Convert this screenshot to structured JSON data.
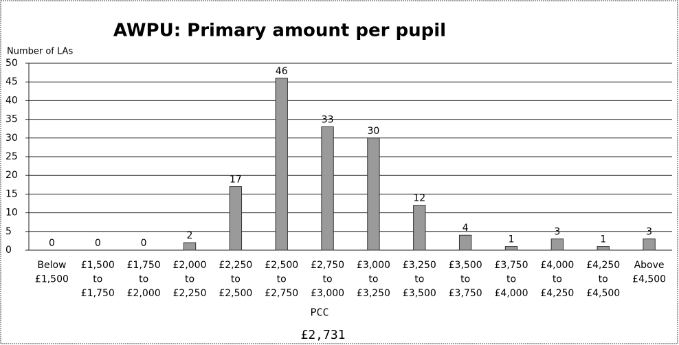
{
  "chart_data": {
    "type": "bar",
    "title": "AWPU: Primary amount per pupil",
    "y_label": "Number of LAs",
    "categories": [
      [
        "Below",
        "£1,500"
      ],
      [
        "£1,500",
        "to",
        "£1,750"
      ],
      [
        "£1,750",
        "to",
        "£2,000"
      ],
      [
        "£2,000",
        "to",
        "£2,250"
      ],
      [
        "£2,250",
        "to",
        "£2,500"
      ],
      [
        "£2,500",
        "to",
        "£2,750"
      ],
      [
        "£2,750",
        "to",
        "£3,000"
      ],
      [
        "£3,000",
        "to",
        "£3,250"
      ],
      [
        "£3,250",
        "to",
        "£3,500"
      ],
      [
        "£3,500",
        "to",
        "£3,750"
      ],
      [
        "£3,750",
        "to",
        "£4,000"
      ],
      [
        "£4,000",
        "to",
        "£4,250"
      ],
      [
        "£4,250",
        "to",
        "£4,500"
      ],
      [
        "Above",
        "£4,500"
      ]
    ],
    "values": [
      0,
      0,
      0,
      2,
      17,
      46,
      33,
      30,
      12,
      4,
      1,
      3,
      1,
      3
    ],
    "color": "#9a9a9a",
    "ylim": [
      0,
      50
    ],
    "yticks": [
      0,
      5,
      10,
      15,
      20,
      25,
      30,
      35,
      40,
      45,
      50
    ],
    "grid": true,
    "annotation": [
      "PCC",
      "£2,731"
    ]
  }
}
